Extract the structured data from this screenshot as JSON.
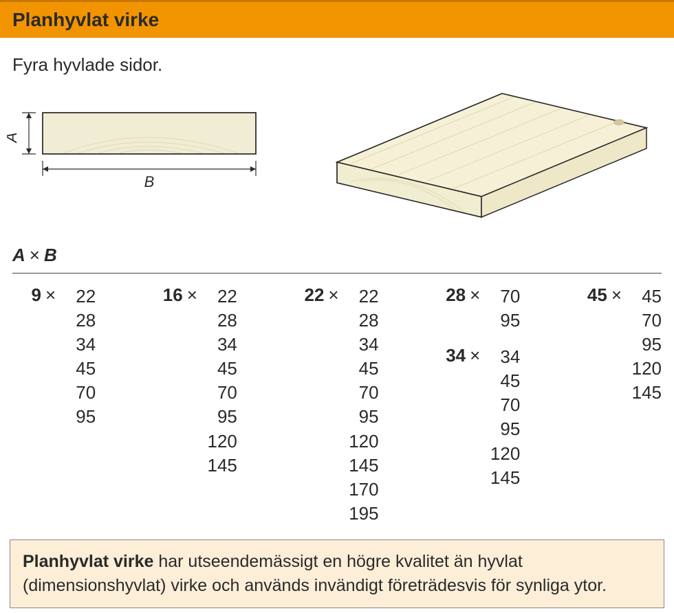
{
  "header": {
    "title": "Planhyvlat virke"
  },
  "subtitle": "Fyra hyvlade sidor.",
  "diagram2d": {
    "labelA": "A",
    "labelB": "B",
    "wood_fill": "#f1edd5",
    "wood_grain": "#e0dab6",
    "stroke": "#2a2a2a"
  },
  "diagram3d": {
    "top_fill": "#f5f0d6",
    "side_fill": "#eee8c8",
    "front_fill": "#f1edd0",
    "stroke": "#2a2a2a",
    "grain": "#e0d9b5"
  },
  "ab_header": {
    "A": "A",
    "times": "×",
    "B": "B"
  },
  "sizes": {
    "columns": [
      {
        "groups": [
          {
            "A": "9",
            "B": [
              "22",
              "28",
              "34",
              "45",
              "70",
              "95"
            ]
          }
        ]
      },
      {
        "groups": [
          {
            "A": "16",
            "B": [
              "22",
              "28",
              "34",
              "45",
              "70",
              "95",
              "120",
              "145"
            ]
          }
        ]
      },
      {
        "groups": [
          {
            "A": "22",
            "B": [
              "22",
              "28",
              "34",
              "45",
              "70",
              "95",
              "120",
              "145",
              "170",
              "195"
            ]
          }
        ]
      },
      {
        "groups": [
          {
            "A": "28",
            "B": [
              "70",
              "95"
            ]
          },
          {
            "A": "34",
            "B": [
              "34",
              "45",
              "70",
              "95",
              "120",
              "145"
            ]
          }
        ]
      },
      {
        "groups": [
          {
            "A": "45",
            "B": [
              "45",
              "70",
              "95",
              "120",
              "145"
            ]
          }
        ]
      }
    ],
    "times": "×"
  },
  "footer": {
    "lead": "Planhyvlat virke",
    "body": " har utseendemässigt en högre kvalitet än hyvlat (dimensionshyvlat) virke och används invändigt företrädesvis för synliga ytor."
  },
  "colors": {
    "header_bg": "#f29400",
    "footer_bg": "#fdeed8"
  }
}
